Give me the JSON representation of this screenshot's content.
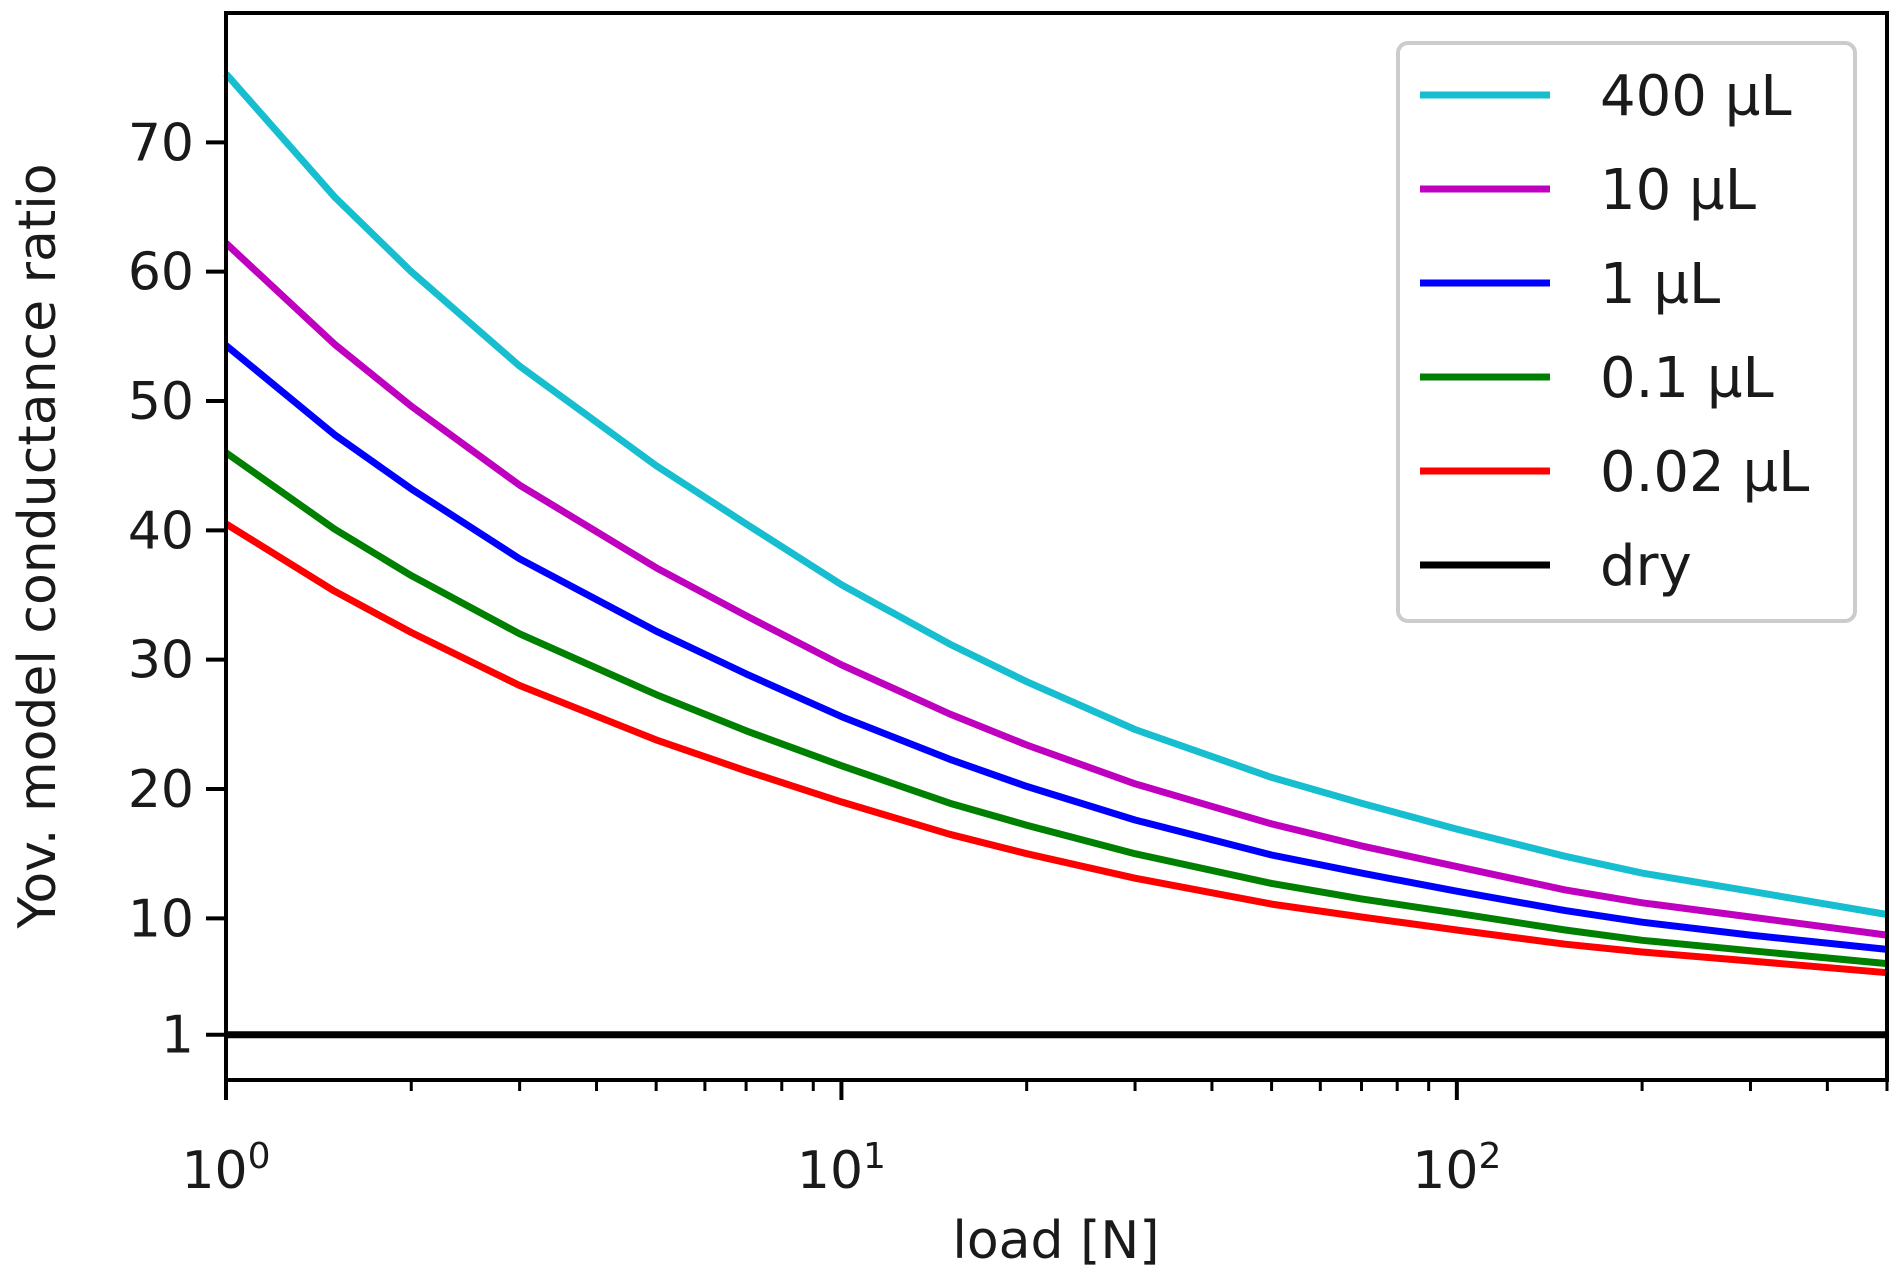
{
  "chart_data": {
    "type": "line",
    "title": "",
    "xlabel": "load [N]",
    "ylabel": "Yov. model conductance ratio",
    "xscale": "log",
    "xlim": [
      1,
      500
    ],
    "ylim": [
      -2.5,
      80
    ],
    "x_ticks": [
      {
        "value": 1,
        "base": "10",
        "exp": "0"
      },
      {
        "value": 10,
        "base": "10",
        "exp": "1"
      },
      {
        "value": 100,
        "base": "10",
        "exp": "2"
      }
    ],
    "y_ticks": [
      {
        "value": 1,
        "label": "1"
      },
      {
        "value": 10,
        "label": "10"
      },
      {
        "value": 20,
        "label": "20"
      },
      {
        "value": 30,
        "label": "30"
      },
      {
        "value": 40,
        "label": "40"
      },
      {
        "value": 50,
        "label": "50"
      },
      {
        "value": 60,
        "label": "60"
      },
      {
        "value": 70,
        "label": "70"
      }
    ],
    "x": [
      1,
      1.5,
      2,
      3,
      5,
      7,
      10,
      15,
      20,
      30,
      50,
      70,
      100,
      150,
      200,
      300,
      500
    ],
    "series": [
      {
        "name": "400 µL",
        "color": "#17becf",
        "values": [
          75.3,
          65.8,
          60.0,
          52.7,
          45.0,
          40.5,
          35.8,
          31.2,
          28.3,
          24.6,
          20.9,
          18.9,
          16.9,
          14.8,
          13.5,
          12.1,
          10.3
        ]
      },
      {
        "name": "10 µL",
        "color": "#bf00bf",
        "values": [
          62.2,
          54.4,
          49.6,
          43.5,
          37.1,
          33.4,
          29.6,
          25.8,
          23.4,
          20.4,
          17.3,
          15.6,
          14.0,
          12.2,
          11.2,
          10.1,
          8.7
        ]
      },
      {
        "name": "1 µL",
        "color": "#0000ff",
        "values": [
          54.3,
          47.4,
          43.2,
          37.8,
          32.2,
          28.9,
          25.6,
          22.3,
          20.2,
          17.6,
          14.9,
          13.5,
          12.1,
          10.6,
          9.7,
          8.7,
          7.6
        ]
      },
      {
        "name": "0.1 µL",
        "color": "#008000",
        "values": [
          46.0,
          40.1,
          36.5,
          32.0,
          27.3,
          24.5,
          21.8,
          18.9,
          17.2,
          15.0,
          12.7,
          11.5,
          10.4,
          9.1,
          8.3,
          7.5,
          6.5
        ]
      },
      {
        "name": "0.02 µL",
        "color": "#ff0000",
        "values": [
          40.5,
          35.3,
          32.1,
          28.0,
          23.8,
          21.4,
          19.0,
          16.5,
          15.0,
          13.1,
          11.1,
          10.1,
          9.1,
          8.0,
          7.4,
          6.7,
          5.8
        ]
      },
      {
        "name": "dry",
        "color": "#000000",
        "values": [
          1,
          1,
          1,
          1,
          1,
          1,
          1,
          1,
          1,
          1,
          1,
          1,
          1,
          1,
          1,
          1,
          1
        ]
      }
    ],
    "legend": {
      "placement": "top-right"
    },
    "grid": false
  }
}
